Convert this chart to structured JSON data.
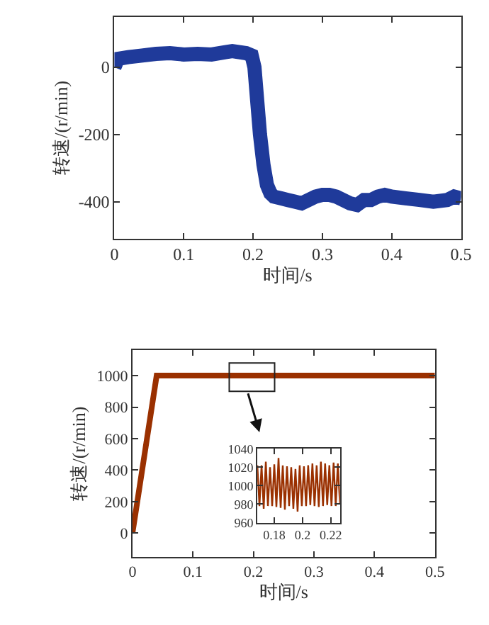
{
  "chart_data": [
    {
      "type": "line",
      "xlabel": "时间/s",
      "ylabel": "转速/(r/min)",
      "xlim": [
        0,
        0.5
      ],
      "ylim": [
        -510,
        150
      ],
      "xticks": [
        0,
        0.1,
        0.2,
        0.3,
        0.4,
        0.5
      ],
      "yticks": [
        -400,
        -200,
        0
      ],
      "marker": "none",
      "line_style": "solid",
      "series": [
        {
          "color": "#1f3a9a",
          "x": [
            0,
            0.005,
            0.02,
            0.04,
            0.06,
            0.08,
            0.1,
            0.12,
            0.14,
            0.16,
            0.17,
            0.19,
            0.198,
            0.202,
            0.206,
            0.21,
            0.215,
            0.22,
            0.225,
            0.23,
            0.24,
            0.25,
            0.26,
            0.27,
            0.28,
            0.29,
            0.3,
            0.31,
            0.32,
            0.33,
            0.34,
            0.35,
            0.36,
            0.37,
            0.38,
            0.39,
            0.4,
            0.42,
            0.44,
            0.46,
            0.48,
            0.49,
            0.5
          ],
          "values": [
            0,
            25,
            30,
            35,
            40,
            42,
            38,
            40,
            38,
            45,
            48,
            42,
            35,
            0,
            -100,
            -200,
            -290,
            -350,
            -375,
            -385,
            -390,
            -395,
            -400,
            -405,
            -395,
            -385,
            -380,
            -380,
            -385,
            -395,
            -405,
            -410,
            -395,
            -395,
            -385,
            -380,
            -385,
            -390,
            -395,
            -400,
            -395,
            -385,
            -390
          ]
        }
      ]
    },
    {
      "type": "line",
      "xlabel": "时间/s",
      "ylabel": "转速/(r/min)",
      "xlim": [
        0,
        0.5
      ],
      "ylim": [
        -150,
        1160
      ],
      "xticks": [
        0,
        0.1,
        0.2,
        0.3,
        0.4,
        0.5
      ],
      "yticks": [
        0,
        200,
        400,
        600,
        800,
        1000
      ],
      "marker": "none",
      "line_style": "solid",
      "series": [
        {
          "color": "#9a3000",
          "x": [
            0,
            0.01,
            0.02,
            0.03,
            0.04,
            0.05,
            0.1,
            0.15,
            0.2,
            0.25,
            0.3,
            0.35,
            0.4,
            0.45,
            0.5
          ],
          "values": [
            0,
            250,
            500,
            750,
            1000,
            1000,
            1000,
            1000,
            1000,
            1000,
            1000,
            1000,
            1000,
            1000,
            1000
          ]
        }
      ]
    },
    {
      "type": "line",
      "xlim": [
        0.168,
        0.2265
      ],
      "ylim": [
        960,
        1040
      ],
      "xticks": [
        0.18,
        0.2,
        0.22
      ],
      "yticks": [
        960,
        980,
        1000,
        1020,
        1040
      ],
      "marker": "none",
      "line_style": "solid",
      "series": [
        {
          "color": "#9a3000",
          "x": [
            0.168,
            0.1695,
            0.171,
            0.1725,
            0.174,
            0.1755,
            0.177,
            0.1785,
            0.18,
            0.1815,
            0.183,
            0.1845,
            0.186,
            0.1875,
            0.189,
            0.1905,
            0.192,
            0.1935,
            0.195,
            0.1965,
            0.198,
            0.1995,
            0.201,
            0.2025,
            0.204,
            0.2055,
            0.207,
            0.2085,
            0.21,
            0.2115,
            0.213,
            0.2145,
            0.216,
            0.2175,
            0.219,
            0.2205,
            0.222,
            0.2235,
            0.225,
            0.2265
          ],
          "values": [
            1022,
            978,
            1022,
            975,
            1026,
            978,
            1020,
            978,
            1023,
            977,
            1030,
            976,
            1022,
            974,
            1021,
            978,
            1020,
            975,
            1018,
            972,
            1022,
            978,
            1021,
            978,
            1022,
            979,
            1024,
            978,
            1022,
            977,
            1026,
            978,
            1024,
            979,
            1022,
            978,
            1025,
            978,
            1024,
            980
          ]
        }
      ]
    }
  ]
}
